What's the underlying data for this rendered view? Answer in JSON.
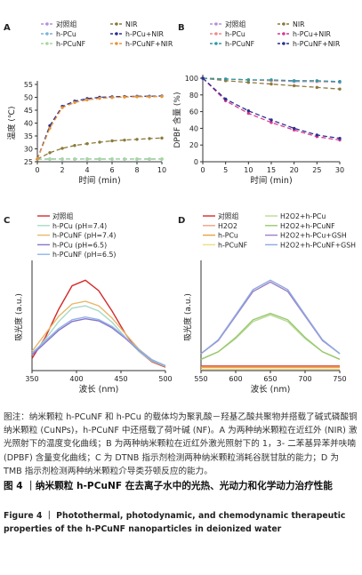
{
  "chart_data": [
    {
      "type": "line",
      "panel_label": "A",
      "xlabel": "时间 (min)",
      "ylabel": "温度 (℃)",
      "xlim": [
        0,
        10
      ],
      "ylim": [
        25,
        55
      ],
      "xticks": [
        0,
        2,
        4,
        6,
        8,
        10
      ],
      "yticks": [
        25,
        30,
        35,
        40,
        45,
        50,
        55
      ],
      "legend_ncol": 2,
      "series": [
        {
          "name": "对照组",
          "color": "#b58fd8",
          "dash": "5,3",
          "marker": "circle",
          "x": [
            0,
            1,
            2,
            3,
            4,
            5,
            6,
            7,
            8,
            9,
            10
          ],
          "y": [
            26.0,
            26.0,
            26.1,
            26.0,
            26.1,
            26.0,
            26.1,
            26.0,
            26.1,
            26.0,
            26.1
          ]
        },
        {
          "name": "NIR",
          "color": "#8a7a3a",
          "dash": "5,3",
          "marker": "circle",
          "x": [
            0,
            1,
            2,
            3,
            4,
            5,
            6,
            7,
            8,
            9,
            10
          ],
          "y": [
            26.0,
            28.5,
            30.2,
            31.3,
            32.0,
            32.6,
            33.1,
            33.4,
            33.7,
            34.0,
            34.2
          ]
        },
        {
          "name": "h-PCu",
          "color": "#7ab3d6",
          "dash": "5,3",
          "marker": "circle",
          "x": [
            0,
            1,
            2,
            3,
            4,
            5,
            6,
            7,
            8,
            9,
            10
          ],
          "y": [
            26.0,
            26.1,
            26.0,
            26.1,
            26.0,
            26.1,
            26.0,
            26.1,
            26.0,
            26.1,
            26.0
          ]
        },
        {
          "name": "h-PCu+NIR",
          "color": "#2a2f8f",
          "dash": "5,3",
          "marker": "circle",
          "x": [
            0,
            1,
            2,
            3,
            4,
            5,
            6,
            7,
            8,
            9,
            10
          ],
          "y": [
            26.0,
            39.0,
            46.5,
            48.5,
            49.5,
            50.0,
            50.2,
            50.3,
            50.4,
            50.4,
            50.5
          ]
        },
        {
          "name": "h-PCuNF",
          "color": "#a6d99a",
          "dash": "5,3",
          "marker": "circle",
          "x": [
            0,
            1,
            2,
            3,
            4,
            5,
            6,
            7,
            8,
            9,
            10
          ],
          "y": [
            26.0,
            26.0,
            26.1,
            26.0,
            26.1,
            26.0,
            26.1,
            26.0,
            26.1,
            26.0,
            26.1
          ]
        },
        {
          "name": "h-PCuNF+NIR",
          "color": "#e8953a",
          "dash": "5,3",
          "marker": "circle",
          "x": [
            0,
            1,
            2,
            3,
            4,
            5,
            6,
            7,
            8,
            9,
            10
          ],
          "y": [
            26.0,
            38.0,
            46.0,
            48.0,
            49.0,
            49.6,
            49.9,
            50.1,
            50.2,
            50.2,
            50.3
          ]
        }
      ]
    },
    {
      "type": "line",
      "panel_label": "B",
      "xlabel": "时间 (min)",
      "ylabel": "DPBF 含量 (%)",
      "xlim": [
        0,
        30
      ],
      "ylim": [
        0,
        100
      ],
      "xticks": [
        0,
        5,
        10,
        15,
        20,
        25,
        30
      ],
      "yticks": [
        0,
        20,
        40,
        60,
        80,
        100
      ],
      "legend_ncol": 2,
      "series": [
        {
          "name": "对照组",
          "color": "#b58fd8",
          "dash": "5,3",
          "marker": "circle",
          "x": [
            0,
            5,
            10,
            15,
            20,
            25,
            30
          ],
          "y": [
            100,
            99,
            98,
            97,
            96,
            96,
            95
          ]
        },
        {
          "name": "NIR",
          "color": "#8a7a3a",
          "dash": "5,3",
          "marker": "circle",
          "x": [
            0,
            5,
            10,
            15,
            20,
            25,
            30
          ],
          "y": [
            100,
            97,
            95,
            93,
            91,
            89,
            87
          ]
        },
        {
          "name": "h-PCu",
          "color": "#f08a8a",
          "dash": "5,3",
          "marker": "circle",
          "x": [
            0,
            5,
            10,
            15,
            20,
            25,
            30
          ],
          "y": [
            100,
            99,
            98,
            97,
            97,
            96,
            96
          ]
        },
        {
          "name": "h-PCu+NIR",
          "color": "#d9378f",
          "dash": "5,3",
          "marker": "circle",
          "x": [
            0,
            5,
            10,
            15,
            20,
            25,
            30
          ],
          "y": [
            100,
            73,
            58,
            47,
            38,
            30,
            26
          ]
        },
        {
          "name": "h-PCuNF",
          "color": "#2c9aa3",
          "dash": "5,3",
          "marker": "circle",
          "x": [
            0,
            5,
            10,
            15,
            20,
            25,
            30
          ],
          "y": [
            100,
            99,
            98,
            98,
            97,
            97,
            96
          ]
        },
        {
          "name": "h-PCuNF+NIR",
          "color": "#2a2f8f",
          "dash": "5,3",
          "marker": "circle",
          "x": [
            0,
            5,
            10,
            15,
            20,
            25,
            30
          ],
          "y": [
            100,
            75,
            61,
            50,
            40,
            32,
            28
          ]
        }
      ]
    },
    {
      "type": "line",
      "panel_label": "C",
      "xlabel": "波长 (nm)",
      "ylabel": "吸光度 (a.u.)",
      "xlim": [
        350,
        500
      ],
      "xticks": [
        350,
        400,
        450,
        500
      ],
      "legend_ncol": 1,
      "series": [
        {
          "name": "对照组",
          "color": "#d42a2a",
          "dash": "",
          "x": [
            350,
            365,
            380,
            395,
            410,
            425,
            440,
            455,
            470,
            485,
            500
          ],
          "y": [
            0.35,
            0.95,
            1.75,
            2.42,
            2.58,
            2.28,
            1.7,
            1.05,
            0.55,
            0.25,
            0.1
          ]
        },
        {
          "name": "h-PCu (pH=7.4)",
          "color": "#a8d8c8",
          "dash": "",
          "x": [
            350,
            365,
            380,
            395,
            410,
            425,
            440,
            455,
            470,
            485,
            500
          ],
          "y": [
            0.45,
            0.9,
            1.4,
            1.78,
            1.85,
            1.7,
            1.38,
            0.95,
            0.55,
            0.27,
            0.12
          ]
        },
        {
          "name": "h-PCuNF (pH=7.4)",
          "color": "#e6b86a",
          "dash": "",
          "x": [
            350,
            365,
            380,
            395,
            410,
            425,
            440,
            455,
            470,
            485,
            500
          ],
          "y": [
            0.55,
            1.05,
            1.55,
            1.9,
            1.98,
            1.85,
            1.5,
            1.05,
            0.62,
            0.3,
            0.13
          ]
        },
        {
          "name": "h-PCu (pH=6.5)",
          "color": "#8a74c8",
          "dash": "",
          "x": [
            350,
            365,
            380,
            395,
            410,
            425,
            440,
            455,
            470,
            485,
            500
          ],
          "y": [
            0.45,
            0.8,
            1.15,
            1.4,
            1.48,
            1.42,
            1.22,
            0.92,
            0.58,
            0.3,
            0.14
          ]
        },
        {
          "name": "h-PCuNF (pH=6.5)",
          "color": "#8fb4e8",
          "dash": "",
          "x": [
            350,
            365,
            380,
            395,
            410,
            425,
            440,
            455,
            470,
            485,
            500
          ],
          "y": [
            0.5,
            0.85,
            1.2,
            1.45,
            1.53,
            1.46,
            1.26,
            0.95,
            0.6,
            0.31,
            0.14
          ]
        }
      ]
    },
    {
      "type": "line",
      "panel_label": "D",
      "xlabel": "波长 (nm)",
      "ylabel": "吸光度 (a.u.)",
      "xlim": [
        550,
        750
      ],
      "xticks": [
        550,
        600,
        650,
        700,
        750
      ],
      "legend_ncol": 2,
      "series": [
        {
          "name": "对照组",
          "color": "#d42a2a",
          "dash": "",
          "x": [
            550,
            575,
            600,
            625,
            650,
            675,
            700,
            725,
            750
          ],
          "y": [
            0.12,
            0.12,
            0.12,
            0.12,
            0.12,
            0.12,
            0.12,
            0.12,
            0.12
          ]
        },
        {
          "name": "H2O2+h-PCu",
          "color": "#b8dc98",
          "dash": "",
          "x": [
            550,
            575,
            600,
            625,
            650,
            675,
            700,
            725,
            750
          ],
          "y": [
            0.3,
            0.5,
            0.85,
            1.3,
            1.48,
            1.3,
            0.85,
            0.5,
            0.3
          ]
        },
        {
          "name": "H2O2",
          "color": "#f0a080",
          "dash": "",
          "x": [
            550,
            575,
            600,
            625,
            650,
            675,
            700,
            725,
            750
          ],
          "y": [
            0.08,
            0.08,
            0.08,
            0.08,
            0.08,
            0.08,
            0.08,
            0.08,
            0.08
          ]
        },
        {
          "name": "H2O2+h-PCuNF",
          "color": "#9ac870",
          "dash": "",
          "x": [
            550,
            575,
            600,
            625,
            650,
            675,
            700,
            725,
            750
          ],
          "y": [
            0.3,
            0.5,
            0.88,
            1.35,
            1.52,
            1.35,
            0.88,
            0.5,
            0.3
          ]
        },
        {
          "name": "h-PCu",
          "color": "#e8a040",
          "dash": "",
          "x": [
            550,
            575,
            600,
            625,
            650,
            675,
            700,
            725,
            750
          ],
          "y": [
            0.1,
            0.1,
            0.1,
            0.1,
            0.1,
            0.1,
            0.1,
            0.1,
            0.1
          ]
        },
        {
          "name": "H2O2+h-PCu+GSH",
          "color": "#9a80c8",
          "dash": "",
          "x": [
            550,
            575,
            600,
            625,
            650,
            675,
            700,
            725,
            750
          ],
          "y": [
            0.45,
            0.8,
            1.45,
            2.1,
            2.35,
            2.1,
            1.45,
            0.8,
            0.45
          ]
        },
        {
          "name": "h-PCuNF",
          "color": "#f0dc80",
          "dash": "",
          "x": [
            550,
            575,
            600,
            625,
            650,
            675,
            700,
            725,
            750
          ],
          "y": [
            0.03,
            0.03,
            0.03,
            0.03,
            0.03,
            0.03,
            0.03,
            0.03,
            0.03
          ]
        },
        {
          "name": "H2O2+h-PCuNF+GSH",
          "color": "#8fa8e0",
          "dash": "",
          "x": [
            550,
            575,
            600,
            625,
            650,
            675,
            700,
            725,
            750
          ],
          "y": [
            0.45,
            0.82,
            1.48,
            2.15,
            2.4,
            2.15,
            1.48,
            0.82,
            0.45
          ]
        }
      ]
    }
  ],
  "caption": {
    "body": "图注：纳米颗粒 h-PCuNF 和 h-PCu 的载体均为聚乳酸－羟基乙酸共聚物并搭载了碱式磷酸铜纳米颗粒 (CuNPs)，h-PCuNF 中还搭载了荷叶碱 (NF)。A 为两种纳米颗粒在近红外 (NIR) 激光照射下的温度变化曲线；B 为两种纳米颗粒在近红外激光照射下的 1，3- 二苯基异苯并呋喃 (DPBF) 含量变化曲线；C 为 DTNB 指示剂检测两种纳米颗粒消耗谷胱甘肽的能力；D 为 TMB 指示剂检测两种纳米颗粒介导类芬顿反应的能力。",
    "title_zh": "图 4 ｜纳米颗粒 h-PCuNF 在去离子水中的光热、光动力和化学动力治疗性能",
    "title_en": "Figure 4 ｜ Photothermal, photodynamic, and chemodynamic therapeutic properties of the h-PCuNF nanoparticles in deionized water"
  }
}
